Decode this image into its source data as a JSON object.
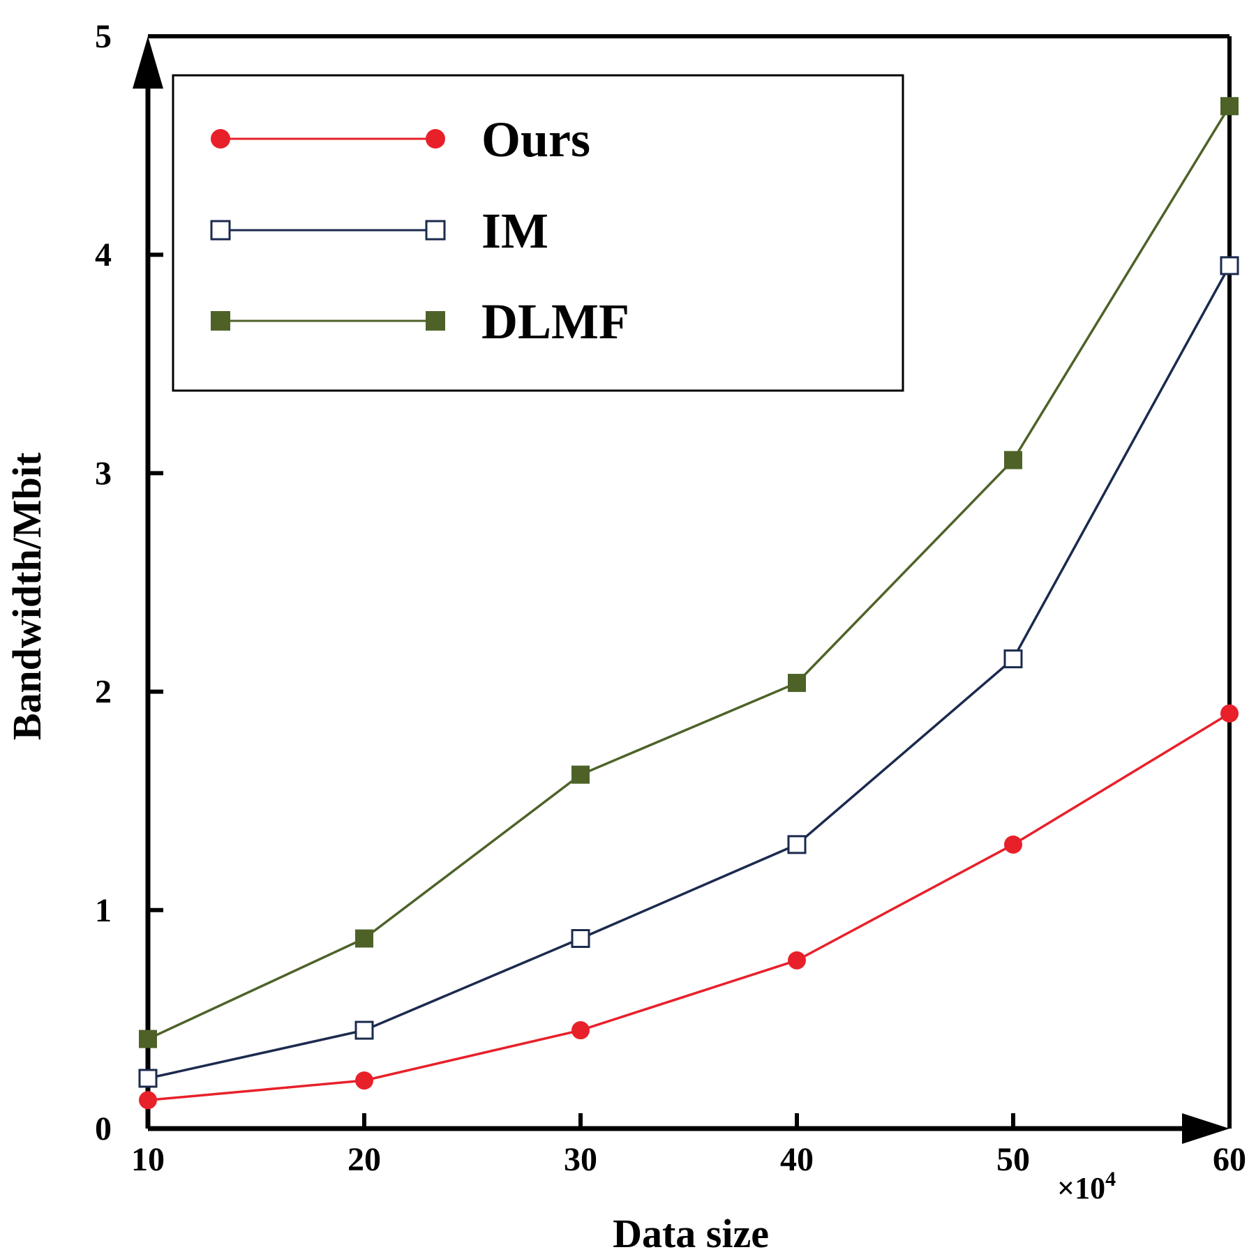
{
  "chart_data": {
    "type": "line",
    "title": "",
    "xlabel": "Data size",
    "ylabel": "Bandwidth/Mbit",
    "x_multiplier_prefix": "×10",
    "x_multiplier_exponent": "4",
    "x": [
      10,
      20,
      30,
      40,
      50,
      60
    ],
    "xlim": [
      10,
      60
    ],
    "ylim": [
      0,
      5
    ],
    "x_ticks": [
      "10",
      "20",
      "30",
      "40",
      "50",
      "60"
    ],
    "y_ticks": [
      "0",
      "1",
      "2",
      "3",
      "4",
      "5"
    ],
    "grid": false,
    "legend_position": "top-left",
    "series": [
      {
        "name": "Ours",
        "marker": "filled-circle",
        "color": "#e8202a",
        "values": [
          0.13,
          0.22,
          0.45,
          0.77,
          1.3,
          1.9
        ]
      },
      {
        "name": "IM",
        "marker": "open-square",
        "color": "#1b2a4e",
        "values": [
          0.23,
          0.45,
          0.87,
          1.3,
          2.15,
          3.95
        ]
      },
      {
        "name": "DLMF",
        "marker": "filled-square",
        "color": "#4e6228",
        "values": [
          0.41,
          0.87,
          1.62,
          2.04,
          3.06,
          4.68
        ]
      }
    ]
  }
}
